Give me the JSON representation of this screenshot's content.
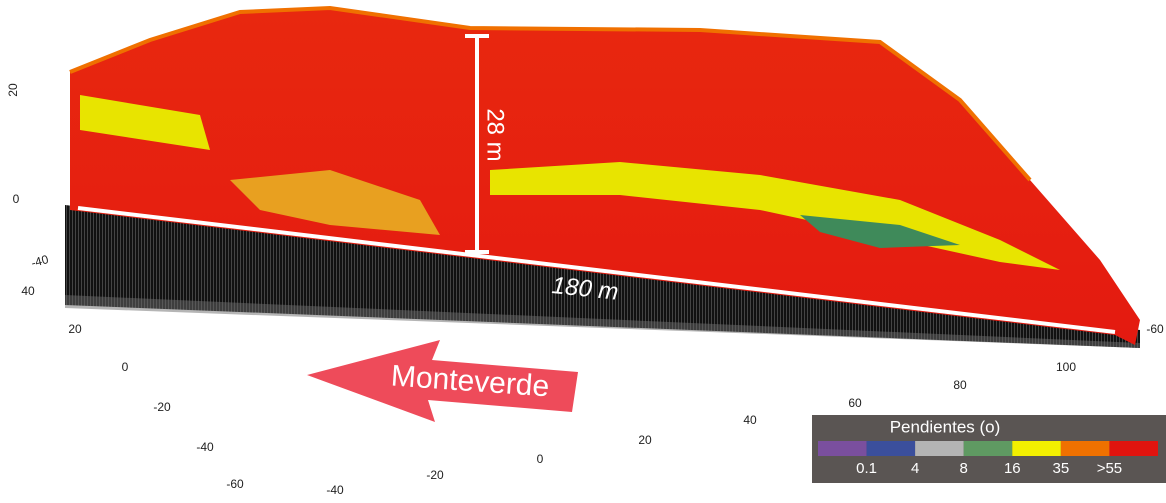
{
  "axes": {
    "z_ticks": [
      "20",
      "0",
      "-40"
    ],
    "y_ticks": [
      "40",
      "20",
      "0",
      "-20",
      "-40",
      "-60"
    ],
    "x_ticks": [
      "-40",
      "-20",
      "0",
      "20",
      "40",
      "60",
      "80",
      "100"
    ],
    "right_tick": "-60"
  },
  "annotations": {
    "height": "28 m",
    "length": "180 m",
    "direction": "Monteverde"
  },
  "legend": {
    "title": "Pendientes (o)",
    "colors": [
      "#7a4f9e",
      "#3b4f9c",
      "#b4b4b4",
      "#5f9a62",
      "#f2ef00",
      "#ef7100",
      "#e0140f"
    ],
    "labels": [
      "0.1",
      "4",
      "8",
      "16",
      "35",
      ">55"
    ]
  }
}
